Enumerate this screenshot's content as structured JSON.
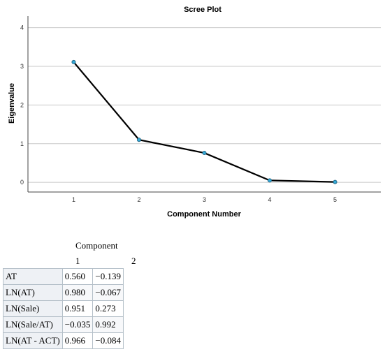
{
  "chart_data": {
    "type": "line",
    "title": "Scree Plot",
    "xlabel": "Component Number",
    "ylabel": "Eigenvalue",
    "x": [
      1,
      2,
      3,
      4,
      5
    ],
    "y": [
      3.11,
      1.1,
      0.76,
      0.05,
      0.01
    ],
    "xlim": [
      0.3,
      5.7
    ],
    "ylim": [
      -0.25,
      4.3
    ],
    "xticks": [
      1,
      2,
      3,
      4,
      5
    ],
    "yticks": [
      0,
      1,
      2,
      3,
      4
    ],
    "grid": "horizontal",
    "colors": {
      "line": "#000000",
      "marker": "#35a8d6",
      "grid": "#c8c8c8"
    }
  },
  "loadings": {
    "header": "Component",
    "columns": [
      "1",
      "2"
    ],
    "rows": [
      {
        "label": "AT",
        "c1": "0.560",
        "c2": "−0.139"
      },
      {
        "label": "LN(AT)",
        "c1": "0.980",
        "c2": "−0.067"
      },
      {
        "label": "LN(Sale)",
        "c1": "0.951",
        "c2": "0.273"
      },
      {
        "label": "LN(Sale/AT)",
        "c1": "−0.035",
        "c2": "0.992"
      },
      {
        "label": "LN(AT - ACT)",
        "c1": "0.966",
        "c2": "−0.084"
      }
    ]
  }
}
